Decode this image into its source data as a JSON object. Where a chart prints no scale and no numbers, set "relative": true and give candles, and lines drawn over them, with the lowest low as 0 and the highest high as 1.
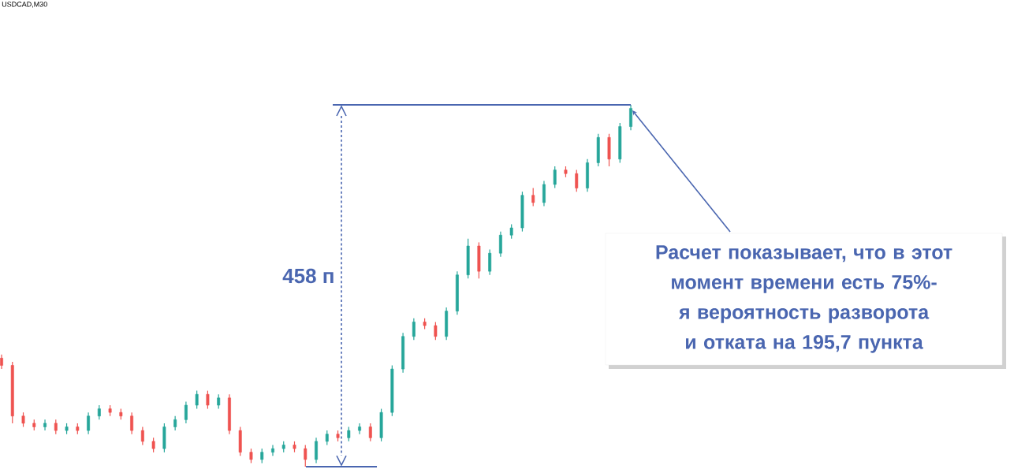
{
  "chart_data": {
    "type": "candlestick",
    "title": "USDCAD,M30",
    "relative": true,
    "categories": [
      null,
      null,
      null,
      null,
      null,
      null,
      null,
      null,
      null,
      null,
      null,
      null,
      null,
      null,
      null,
      null,
      null,
      null,
      null,
      null,
      null,
      null,
      null,
      null,
      null,
      null,
      null,
      null,
      null,
      null,
      null,
      null,
      null,
      null,
      null,
      null,
      null,
      null,
      null,
      null,
      null,
      null,
      null,
      null,
      null,
      null,
      null,
      null,
      null,
      null,
      null,
      null,
      null,
      null,
      null,
      null,
      null,
      null,
      null
    ],
    "ohlc": [
      [
        0.3,
        0.31,
        0.27,
        0.28
      ],
      [
        0.28,
        0.29,
        0.12,
        0.14
      ],
      [
        0.14,
        0.15,
        0.11,
        0.12
      ],
      [
        0.12,
        0.13,
        0.1,
        0.11
      ],
      [
        0.11,
        0.13,
        0.1,
        0.12
      ],
      [
        0.12,
        0.13,
        0.09,
        0.1
      ],
      [
        0.1,
        0.12,
        0.09,
        0.11
      ],
      [
        0.11,
        0.12,
        0.09,
        0.1
      ],
      [
        0.1,
        0.15,
        0.09,
        0.14
      ],
      [
        0.14,
        0.17,
        0.13,
        0.16
      ],
      [
        0.16,
        0.17,
        0.14,
        0.15
      ],
      [
        0.15,
        0.16,
        0.13,
        0.14
      ],
      [
        0.14,
        0.15,
        0.09,
        0.1
      ],
      [
        0.1,
        0.11,
        0.06,
        0.07
      ],
      [
        0.07,
        0.08,
        0.04,
        0.05
      ],
      [
        0.05,
        0.12,
        0.04,
        0.11
      ],
      [
        0.11,
        0.14,
        0.1,
        0.13
      ],
      [
        0.13,
        0.18,
        0.12,
        0.17
      ],
      [
        0.17,
        0.21,
        0.16,
        0.2
      ],
      [
        0.2,
        0.21,
        0.16,
        0.17
      ],
      [
        0.17,
        0.2,
        0.16,
        0.19
      ],
      [
        0.19,
        0.2,
        0.09,
        0.1
      ],
      [
        0.1,
        0.11,
        0.03,
        0.04
      ],
      [
        0.04,
        0.05,
        0.01,
        0.02
      ],
      [
        0.02,
        0.05,
        0.01,
        0.04
      ],
      [
        0.04,
        0.06,
        0.03,
        0.05
      ],
      [
        0.05,
        0.07,
        0.04,
        0.06
      ],
      [
        0.06,
        0.07,
        0.04,
        0.05
      ],
      [
        0.05,
        0.06,
        0.0,
        0.02
      ],
      [
        0.02,
        0.08,
        0.01,
        0.07
      ],
      [
        0.07,
        0.1,
        0.06,
        0.09
      ],
      [
        0.09,
        0.1,
        0.07,
        0.08
      ],
      [
        0.08,
        0.11,
        0.07,
        0.1
      ],
      [
        0.1,
        0.12,
        0.09,
        0.11
      ],
      [
        0.11,
        0.12,
        0.07,
        0.08
      ],
      [
        0.08,
        0.16,
        0.07,
        0.15
      ],
      [
        0.15,
        0.28,
        0.14,
        0.27
      ],
      [
        0.27,
        0.37,
        0.26,
        0.36
      ],
      [
        0.36,
        0.41,
        0.35,
        0.4
      ],
      [
        0.4,
        0.41,
        0.38,
        0.39
      ],
      [
        0.39,
        0.4,
        0.35,
        0.36
      ],
      [
        0.36,
        0.44,
        0.35,
        0.43
      ],
      [
        0.43,
        0.54,
        0.42,
        0.53
      ],
      [
        0.53,
        0.63,
        0.52,
        0.61
      ],
      [
        0.61,
        0.62,
        0.52,
        0.54
      ],
      [
        0.54,
        0.6,
        0.53,
        0.59
      ],
      [
        0.59,
        0.65,
        0.58,
        0.64
      ],
      [
        0.64,
        0.67,
        0.63,
        0.66
      ],
      [
        0.66,
        0.76,
        0.65,
        0.75
      ],
      [
        0.75,
        0.77,
        0.72,
        0.73
      ],
      [
        0.73,
        0.79,
        0.72,
        0.78
      ],
      [
        0.78,
        0.83,
        0.77,
        0.82
      ],
      [
        0.82,
        0.83,
        0.8,
        0.81
      ],
      [
        0.81,
        0.82,
        0.76,
        0.77
      ],
      [
        0.77,
        0.85,
        0.76,
        0.84
      ],
      [
        0.84,
        0.92,
        0.83,
        0.91
      ],
      [
        0.91,
        0.92,
        0.83,
        0.85
      ],
      [
        0.85,
        0.95,
        0.84,
        0.94
      ],
      [
        0.94,
        1.0,
        0.93,
        0.99
      ]
    ],
    "colors": [
      "#ef5350",
      "#ef5350",
      "#ef5350",
      "#ef5350",
      "#26a69a",
      "#ef5350",
      "#26a69a",
      "#ef5350",
      "#26a69a",
      "#26a69a",
      "#ef5350",
      "#ef5350",
      "#ef5350",
      "#ef5350",
      "#ef5350",
      "#26a69a",
      "#26a69a",
      "#26a69a",
      "#26a69a",
      "#ef5350",
      "#26a69a",
      "#ef5350",
      "#ef5350",
      "#ef5350",
      "#26a69a",
      "#26a69a",
      "#26a69a",
      "#ef5350",
      "#ef5350",
      "#26a69a",
      "#26a69a",
      "#ef5350",
      "#26a69a",
      "#26a69a",
      "#ef5350",
      "#26a69a",
      "#26a69a",
      "#26a69a",
      "#26a69a",
      "#ef5350",
      "#ef5350",
      "#26a69a",
      "#26a69a",
      "#26a69a",
      "#ef5350",
      "#26a69a",
      "#26a69a",
      "#26a69a",
      "#26a69a",
      "#ef5350",
      "#26a69a",
      "#26a69a",
      "#ef5350",
      "#ef5350",
      "#26a69a",
      "#26a69a",
      "#ef5350",
      "#26a69a",
      "#26a69a"
    ],
    "annotations": [
      "458 п",
      "Расчет показывает, что в этот момент времени есть 75%-я вероятность разворота и отката на 195,7 пункта"
    ]
  }
}
